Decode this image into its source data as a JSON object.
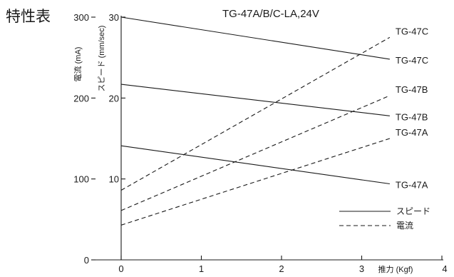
{
  "page": {
    "heading": "特性表",
    "model_title": "TG-47A/B/C-LA,24V"
  },
  "chart_data": {
    "type": "line",
    "title": "TG-47A/B/C-LA,24V",
    "xlabel": "推力 (Kgf)",
    "x_ticks": [
      0,
      1,
      2,
      3,
      4
    ],
    "xlim": [
      0,
      4
    ],
    "y_left_label": "電流 (mA)",
    "y_left_ticks": [
      0,
      100,
      200,
      300
    ],
    "y_left_lim": [
      0,
      300
    ],
    "y_right_label": "スピード (mm/sec)",
    "y_right_ticks": [
      10,
      20,
      30
    ],
    "y_right_lim": [
      0,
      30
    ],
    "series": [
      {
        "name": "TG-47C",
        "kind": "speed",
        "style": "solid",
        "x": [
          0,
          3.35
        ],
        "y": [
          30,
          24.8
        ]
      },
      {
        "name": "TG-47B",
        "kind": "speed",
        "style": "solid",
        "x": [
          0,
          3.35
        ],
        "y": [
          21.7,
          17.8
        ]
      },
      {
        "name": "TG-47A",
        "kind": "speed",
        "style": "solid",
        "x": [
          0,
          3.35
        ],
        "y": [
          14.1,
          9.4
        ]
      },
      {
        "name": "TG-47C",
        "kind": "current",
        "style": "dashed",
        "x": [
          0,
          3.35
        ],
        "y": [
          86,
          275
        ]
      },
      {
        "name": "TG-47B",
        "kind": "current",
        "style": "dashed",
        "x": [
          0,
          3.35
        ],
        "y": [
          61,
          203
        ]
      },
      {
        "name": "TG-47A",
        "kind": "current",
        "style": "dashed",
        "x": [
          0,
          3.35
        ],
        "y": [
          43,
          150
        ]
      }
    ],
    "legend": {
      "position": "bottom-right",
      "items": [
        {
          "label": "スピード",
          "style": "solid"
        },
        {
          "label": "電流",
          "style": "dashed"
        }
      ]
    },
    "grid": false
  }
}
